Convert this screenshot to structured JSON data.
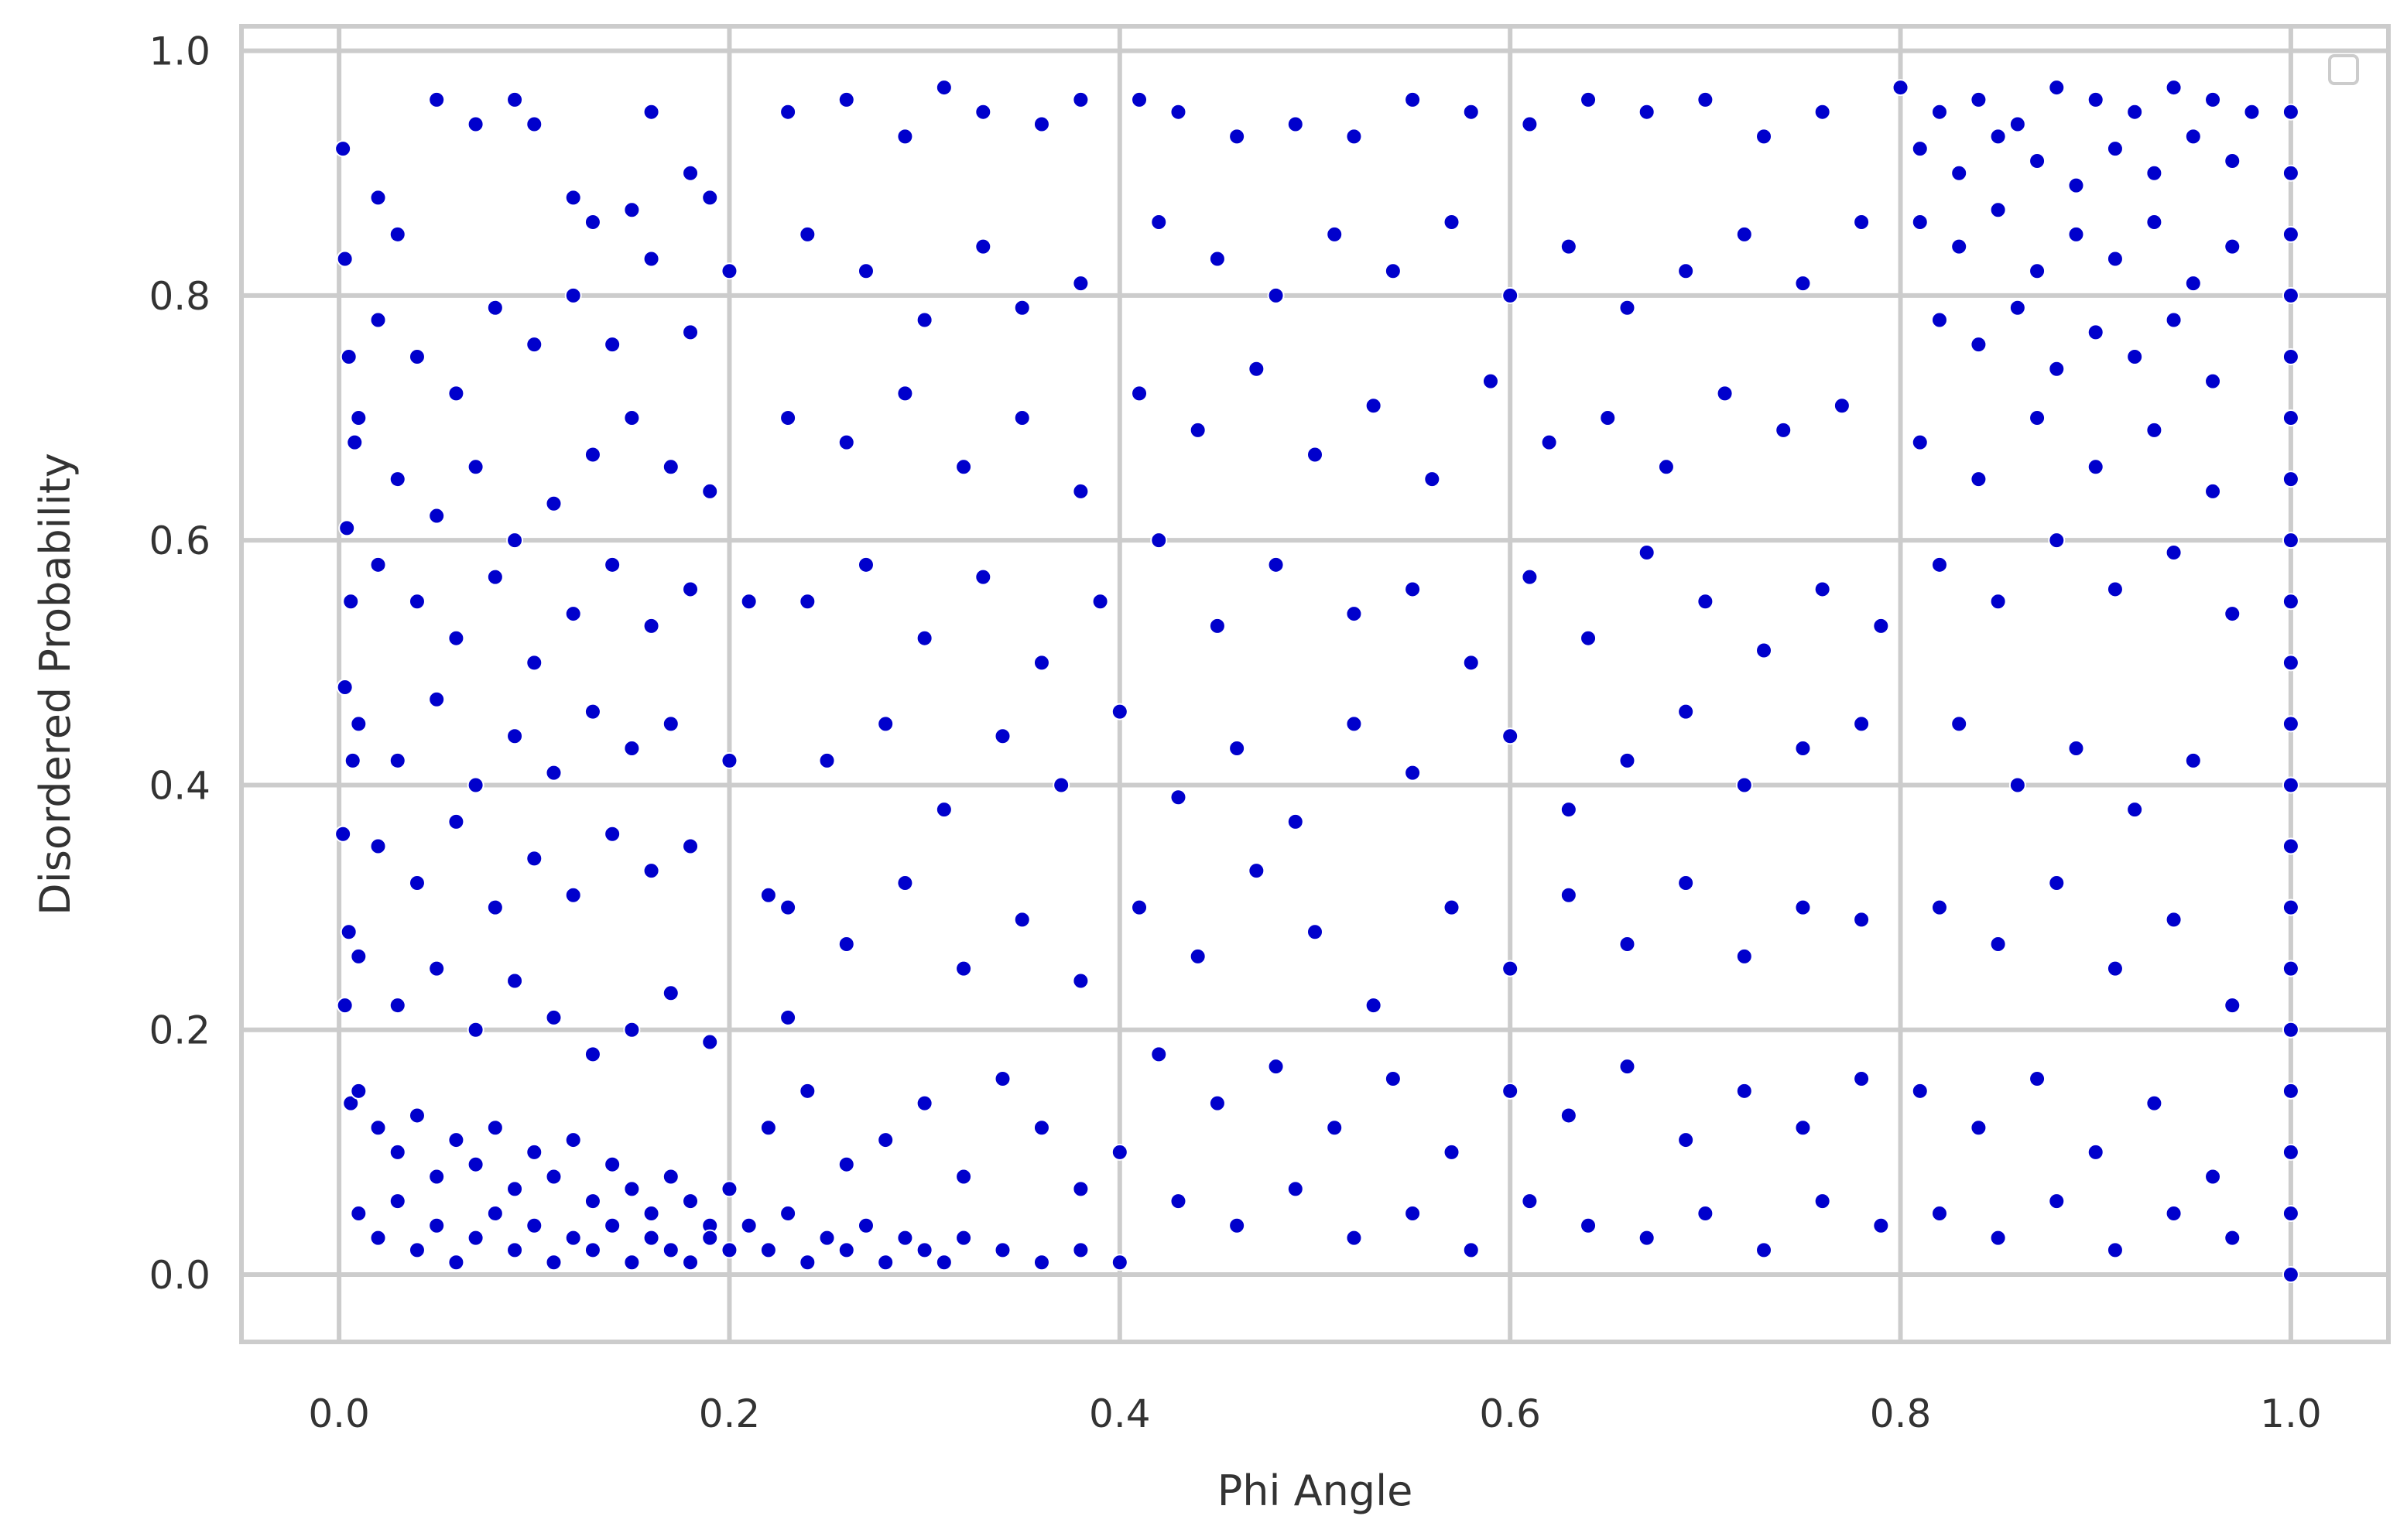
{
  "chart_data": {
    "type": "scatter",
    "title": "",
    "xlabel": "Phi Angle",
    "ylabel": "Disordered Probability",
    "xlim": [
      -0.05,
      1.05
    ],
    "ylim": [
      -0.055,
      1.02
    ],
    "x_ticks": [
      "0.0",
      "0.2",
      "0.4",
      "0.6",
      "0.8",
      "1.0"
    ],
    "y_ticks": [
      "0.0",
      "0.2",
      "0.4",
      "0.6",
      "0.8",
      "1.0"
    ],
    "grid": true,
    "legend": "top-right, empty",
    "marker_color": "#0000cc",
    "marker_edge_color": "#ffffff",
    "background_color": "#ffffff",
    "grid_color": "#cccccc",
    "points": [
      [
        0.002,
        0.92
      ],
      [
        0.003,
        0.83
      ],
      [
        0.005,
        0.75
      ],
      [
        0.008,
        0.68
      ],
      [
        0.004,
        0.61
      ],
      [
        0.006,
        0.55
      ],
      [
        0.003,
        0.48
      ],
      [
        0.007,
        0.42
      ],
      [
        0.002,
        0.36
      ],
      [
        0.005,
        0.28
      ],
      [
        0.003,
        0.22
      ],
      [
        0.006,
        0.14
      ],
      [
        0.02,
        0.88
      ],
      [
        0.03,
        0.85
      ],
      [
        0.05,
        0.96
      ],
      [
        0.07,
        0.94
      ],
      [
        0.09,
        0.96
      ],
      [
        0.1,
        0.94
      ],
      [
        0.12,
        0.88
      ],
      [
        0.13,
        0.86
      ],
      [
        0.15,
        0.87
      ],
      [
        0.16,
        0.95
      ],
      [
        0.18,
        0.9
      ],
      [
        0.19,
        0.88
      ],
      [
        0.02,
        0.78
      ],
      [
        0.04,
        0.75
      ],
      [
        0.06,
        0.72
      ],
      [
        0.08,
        0.79
      ],
      [
        0.1,
        0.76
      ],
      [
        0.12,
        0.8
      ],
      [
        0.14,
        0.76
      ],
      [
        0.16,
        0.83
      ],
      [
        0.18,
        0.77
      ],
      [
        0.2,
        0.82
      ],
      [
        0.01,
        0.7
      ],
      [
        0.03,
        0.65
      ],
      [
        0.05,
        0.62
      ],
      [
        0.07,
        0.66
      ],
      [
        0.09,
        0.6
      ],
      [
        0.11,
        0.63
      ],
      [
        0.13,
        0.67
      ],
      [
        0.15,
        0.7
      ],
      [
        0.17,
        0.66
      ],
      [
        0.19,
        0.64
      ],
      [
        0.02,
        0.58
      ],
      [
        0.04,
        0.55
      ],
      [
        0.06,
        0.52
      ],
      [
        0.08,
        0.57
      ],
      [
        0.1,
        0.5
      ],
      [
        0.12,
        0.54
      ],
      [
        0.14,
        0.58
      ],
      [
        0.16,
        0.53
      ],
      [
        0.18,
        0.56
      ],
      [
        0.21,
        0.55
      ],
      [
        0.01,
        0.45
      ],
      [
        0.03,
        0.42
      ],
      [
        0.05,
        0.47
      ],
      [
        0.07,
        0.4
      ],
      [
        0.09,
        0.44
      ],
      [
        0.11,
        0.41
      ],
      [
        0.13,
        0.46
      ],
      [
        0.15,
        0.43
      ],
      [
        0.17,
        0.45
      ],
      [
        0.2,
        0.42
      ],
      [
        0.02,
        0.35
      ],
      [
        0.04,
        0.32
      ],
      [
        0.06,
        0.37
      ],
      [
        0.08,
        0.3
      ],
      [
        0.1,
        0.34
      ],
      [
        0.12,
        0.31
      ],
      [
        0.14,
        0.36
      ],
      [
        0.16,
        0.33
      ],
      [
        0.18,
        0.35
      ],
      [
        0.22,
        0.31
      ],
      [
        0.01,
        0.26
      ],
      [
        0.03,
        0.22
      ],
      [
        0.05,
        0.25
      ],
      [
        0.07,
        0.2
      ],
      [
        0.09,
        0.24
      ],
      [
        0.11,
        0.21
      ],
      [
        0.13,
        0.18
      ],
      [
        0.15,
        0.2
      ],
      [
        0.17,
        0.23
      ],
      [
        0.19,
        0.19
      ],
      [
        0.23,
        0.21
      ],
      [
        0.01,
        0.15
      ],
      [
        0.02,
        0.12
      ],
      [
        0.03,
        0.1
      ],
      [
        0.04,
        0.13
      ],
      [
        0.05,
        0.08
      ],
      [
        0.06,
        0.11
      ],
      [
        0.07,
        0.09
      ],
      [
        0.08,
        0.12
      ],
      [
        0.09,
        0.07
      ],
      [
        0.1,
        0.1
      ],
      [
        0.11,
        0.08
      ],
      [
        0.12,
        0.11
      ],
      [
        0.13,
        0.06
      ],
      [
        0.14,
        0.09
      ],
      [
        0.15,
        0.07
      ],
      [
        0.16,
        0.05
      ],
      [
        0.17,
        0.08
      ],
      [
        0.18,
        0.06
      ],
      [
        0.19,
        0.04
      ],
      [
        0.2,
        0.07
      ],
      [
        0.01,
        0.05
      ],
      [
        0.02,
        0.03
      ],
      [
        0.03,
        0.06
      ],
      [
        0.04,
        0.02
      ],
      [
        0.05,
        0.04
      ],
      [
        0.06,
        0.01
      ],
      [
        0.07,
        0.03
      ],
      [
        0.08,
        0.05
      ],
      [
        0.09,
        0.02
      ],
      [
        0.1,
        0.04
      ],
      [
        0.11,
        0.01
      ],
      [
        0.12,
        0.03
      ],
      [
        0.13,
        0.02
      ],
      [
        0.14,
        0.04
      ],
      [
        0.15,
        0.01
      ],
      [
        0.16,
        0.03
      ],
      [
        0.17,
        0.02
      ],
      [
        0.18,
        0.01
      ],
      [
        0.19,
        0.03
      ],
      [
        0.2,
        0.02
      ],
      [
        0.21,
        0.04
      ],
      [
        0.22,
        0.02
      ],
      [
        0.23,
        0.05
      ],
      [
        0.24,
        0.01
      ],
      [
        0.25,
        0.03
      ],
      [
        0.26,
        0.02
      ],
      [
        0.27,
        0.04
      ],
      [
        0.28,
        0.01
      ],
      [
        0.29,
        0.03
      ],
      [
        0.3,
        0.02
      ],
      [
        0.31,
        0.01
      ],
      [
        0.32,
        0.03
      ],
      [
        0.34,
        0.02
      ],
      [
        0.36,
        0.01
      ],
      [
        0.38,
        0.02
      ],
      [
        0.4,
        0.01
      ],
      [
        0.22,
        0.12
      ],
      [
        0.24,
        0.15
      ],
      [
        0.26,
        0.09
      ],
      [
        0.28,
        0.11
      ],
      [
        0.3,
        0.14
      ],
      [
        0.32,
        0.08
      ],
      [
        0.34,
        0.16
      ],
      [
        0.36,
        0.12
      ],
      [
        0.38,
        0.07
      ],
      [
        0.4,
        0.1
      ],
      [
        0.23,
        0.95
      ],
      [
        0.26,
        0.96
      ],
      [
        0.29,
        0.93
      ],
      [
        0.31,
        0.97
      ],
      [
        0.33,
        0.95
      ],
      [
        0.36,
        0.94
      ],
      [
        0.38,
        0.96
      ],
      [
        0.41,
        0.96
      ],
      [
        0.43,
        0.95
      ],
      [
        0.46,
        0.93
      ],
      [
        0.49,
        0.94
      ],
      [
        0.52,
        0.93
      ],
      [
        0.55,
        0.96
      ],
      [
        0.58,
        0.95
      ],
      [
        0.61,
        0.94
      ],
      [
        0.64,
        0.96
      ],
      [
        0.67,
        0.95
      ],
      [
        0.7,
        0.96
      ],
      [
        0.73,
        0.93
      ],
      [
        0.76,
        0.95
      ],
      [
        0.24,
        0.85
      ],
      [
        0.27,
        0.82
      ],
      [
        0.3,
        0.78
      ],
      [
        0.33,
        0.84
      ],
      [
        0.35,
        0.79
      ],
      [
        0.38,
        0.81
      ],
      [
        0.42,
        0.86
      ],
      [
        0.45,
        0.83
      ],
      [
        0.48,
        0.8
      ],
      [
        0.51,
        0.85
      ],
      [
        0.54,
        0.82
      ],
      [
        0.57,
        0.86
      ],
      [
        0.6,
        0.8
      ],
      [
        0.63,
        0.84
      ],
      [
        0.66,
        0.79
      ],
      [
        0.69,
        0.82
      ],
      [
        0.72,
        0.85
      ],
      [
        0.75,
        0.81
      ],
      [
        0.78,
        0.86
      ],
      [
        0.23,
        0.7
      ],
      [
        0.26,
        0.68
      ],
      [
        0.29,
        0.72
      ],
      [
        0.32,
        0.66
      ],
      [
        0.35,
        0.7
      ],
      [
        0.38,
        0.64
      ],
      [
        0.41,
        0.72
      ],
      [
        0.44,
        0.69
      ],
      [
        0.47,
        0.74
      ],
      [
        0.5,
        0.67
      ],
      [
        0.53,
        0.71
      ],
      [
        0.56,
        0.65
      ],
      [
        0.59,
        0.73
      ],
      [
        0.62,
        0.68
      ],
      [
        0.65,
        0.7
      ],
      [
        0.68,
        0.66
      ],
      [
        0.71,
        0.72
      ],
      [
        0.74,
        0.69
      ],
      [
        0.77,
        0.71
      ],
      [
        0.24,
        0.55
      ],
      [
        0.27,
        0.58
      ],
      [
        0.3,
        0.52
      ],
      [
        0.33,
        0.57
      ],
      [
        0.36,
        0.5
      ],
      [
        0.39,
        0.55
      ],
      [
        0.42,
        0.6
      ],
      [
        0.45,
        0.53
      ],
      [
        0.48,
        0.58
      ],
      [
        0.52,
        0.54
      ],
      [
        0.55,
        0.56
      ],
      [
        0.58,
        0.5
      ],
      [
        0.61,
        0.57
      ],
      [
        0.64,
        0.52
      ],
      [
        0.67,
        0.59
      ],
      [
        0.7,
        0.55
      ],
      [
        0.73,
        0.51
      ],
      [
        0.76,
        0.56
      ],
      [
        0.79,
        0.53
      ],
      [
        0.25,
        0.42
      ],
      [
        0.28,
        0.45
      ],
      [
        0.31,
        0.38
      ],
      [
        0.34,
        0.44
      ],
      [
        0.37,
        0.4
      ],
      [
        0.4,
        0.46
      ],
      [
        0.43,
        0.39
      ],
      [
        0.46,
        0.43
      ],
      [
        0.49,
        0.37
      ],
      [
        0.52,
        0.45
      ],
      [
        0.55,
        0.41
      ],
      [
        0.6,
        0.44
      ],
      [
        0.63,
        0.38
      ],
      [
        0.66,
        0.42
      ],
      [
        0.69,
        0.46
      ],
      [
        0.72,
        0.4
      ],
      [
        0.75,
        0.43
      ],
      [
        0.78,
        0.45
      ],
      [
        0.23,
        0.3
      ],
      [
        0.26,
        0.27
      ],
      [
        0.29,
        0.32
      ],
      [
        0.32,
        0.25
      ],
      [
        0.35,
        0.29
      ],
      [
        0.38,
        0.24
      ],
      [
        0.41,
        0.3
      ],
      [
        0.44,
        0.26
      ],
      [
        0.47,
        0.33
      ],
      [
        0.5,
        0.28
      ],
      [
        0.53,
        0.22
      ],
      [
        0.57,
        0.3
      ],
      [
        0.6,
        0.25
      ],
      [
        0.63,
        0.31
      ],
      [
        0.66,
        0.27
      ],
      [
        0.69,
        0.32
      ],
      [
        0.72,
        0.26
      ],
      [
        0.75,
        0.3
      ],
      [
        0.78,
        0.29
      ],
      [
        0.42,
        0.18
      ],
      [
        0.45,
        0.14
      ],
      [
        0.48,
        0.17
      ],
      [
        0.51,
        0.12
      ],
      [
        0.54,
        0.16
      ],
      [
        0.57,
        0.1
      ],
      [
        0.6,
        0.15
      ],
      [
        0.63,
        0.13
      ],
      [
        0.66,
        0.17
      ],
      [
        0.69,
        0.11
      ],
      [
        0.72,
        0.15
      ],
      [
        0.75,
        0.12
      ],
      [
        0.78,
        0.16
      ],
      [
        0.43,
        0.06
      ],
      [
        0.46,
        0.04
      ],
      [
        0.49,
        0.07
      ],
      [
        0.52,
        0.03
      ],
      [
        0.55,
        0.05
      ],
      [
        0.58,
        0.02
      ],
      [
        0.61,
        0.06
      ],
      [
        0.64,
        0.04
      ],
      [
        0.67,
        0.03
      ],
      [
        0.7,
        0.05
      ],
      [
        0.73,
        0.02
      ],
      [
        0.76,
        0.06
      ],
      [
        0.79,
        0.04
      ],
      [
        0.8,
        0.97
      ],
      [
        0.82,
        0.95
      ],
      [
        0.84,
        0.96
      ],
      [
        0.86,
        0.94
      ],
      [
        0.88,
        0.97
      ],
      [
        0.9,
        0.96
      ],
      [
        0.92,
        0.95
      ],
      [
        0.94,
        0.97
      ],
      [
        0.96,
        0.96
      ],
      [
        0.98,
        0.95
      ],
      [
        0.81,
        0.92
      ],
      [
        0.83,
        0.9
      ],
      [
        0.85,
        0.93
      ],
      [
        0.87,
        0.91
      ],
      [
        0.89,
        0.89
      ],
      [
        0.91,
        0.92
      ],
      [
        0.93,
        0.9
      ],
      [
        0.95,
        0.93
      ],
      [
        0.97,
        0.91
      ],
      [
        0.81,
        0.86
      ],
      [
        0.83,
        0.84
      ],
      [
        0.85,
        0.87
      ],
      [
        0.87,
        0.82
      ],
      [
        0.89,
        0.85
      ],
      [
        0.91,
        0.83
      ],
      [
        0.93,
        0.86
      ],
      [
        0.95,
        0.81
      ],
      [
        0.97,
        0.84
      ],
      [
        0.82,
        0.78
      ],
      [
        0.84,
        0.76
      ],
      [
        0.86,
        0.79
      ],
      [
        0.88,
        0.74
      ],
      [
        0.9,
        0.77
      ],
      [
        0.92,
        0.75
      ],
      [
        0.94,
        0.78
      ],
      [
        0.96,
        0.73
      ],
      [
        0.81,
        0.68
      ],
      [
        0.84,
        0.65
      ],
      [
        0.87,
        0.7
      ],
      [
        0.9,
        0.66
      ],
      [
        0.93,
        0.69
      ],
      [
        0.96,
        0.64
      ],
      [
        0.82,
        0.58
      ],
      [
        0.85,
        0.55
      ],
      [
        0.88,
        0.6
      ],
      [
        0.91,
        0.56
      ],
      [
        0.94,
        0.59
      ],
      [
        0.97,
        0.54
      ],
      [
        0.83,
        0.45
      ],
      [
        0.86,
        0.4
      ],
      [
        0.89,
        0.43
      ],
      [
        0.92,
        0.38
      ],
      [
        0.95,
        0.42
      ],
      [
        0.82,
        0.3
      ],
      [
        0.85,
        0.27
      ],
      [
        0.88,
        0.32
      ],
      [
        0.91,
        0.25
      ],
      [
        0.94,
        0.29
      ],
      [
        0.97,
        0.22
      ],
      [
        0.81,
        0.15
      ],
      [
        0.84,
        0.12
      ],
      [
        0.87,
        0.16
      ],
      [
        0.9,
        0.1
      ],
      [
        0.93,
        0.14
      ],
      [
        0.96,
        0.08
      ],
      [
        0.82,
        0.05
      ],
      [
        0.85,
        0.03
      ],
      [
        0.88,
        0.06
      ],
      [
        0.91,
        0.02
      ],
      [
        0.94,
        0.05
      ],
      [
        0.97,
        0.03
      ],
      [
        1.0,
        0.95
      ],
      [
        1.0,
        0.9
      ],
      [
        1.0,
        0.85
      ],
      [
        1.0,
        0.8
      ],
      [
        1.0,
        0.75
      ],
      [
        1.0,
        0.7
      ],
      [
        1.0,
        0.65
      ],
      [
        1.0,
        0.6
      ],
      [
        1.0,
        0.55
      ],
      [
        1.0,
        0.5
      ],
      [
        1.0,
        0.45
      ],
      [
        1.0,
        0.4
      ],
      [
        1.0,
        0.35
      ],
      [
        1.0,
        0.3
      ],
      [
        1.0,
        0.25
      ],
      [
        1.0,
        0.2
      ],
      [
        1.0,
        0.15
      ],
      [
        1.0,
        0.1
      ],
      [
        1.0,
        0.05
      ],
      [
        1.0,
        0.0
      ]
    ]
  }
}
